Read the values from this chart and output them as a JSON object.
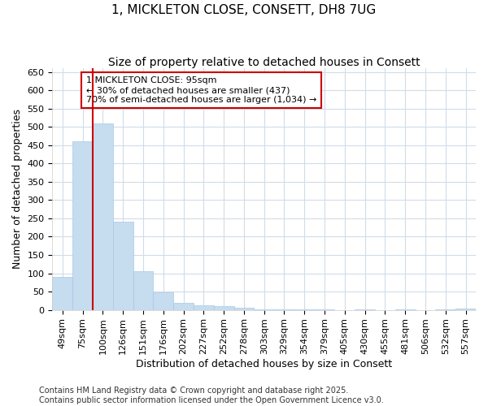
{
  "title_line1": "1, MICKLETON CLOSE, CONSETT, DH8 7UG",
  "title_line2": "Size of property relative to detached houses in Consett",
  "xlabel": "Distribution of detached houses by size in Consett",
  "ylabel": "Number of detached properties",
  "categories": [
    "49sqm",
    "75sqm",
    "100sqm",
    "126sqm",
    "151sqm",
    "176sqm",
    "202sqm",
    "227sqm",
    "252sqm",
    "278sqm",
    "303sqm",
    "329sqm",
    "354sqm",
    "379sqm",
    "405sqm",
    "430sqm",
    "455sqm",
    "481sqm",
    "506sqm",
    "532sqm",
    "557sqm"
  ],
  "values": [
    90,
    460,
    510,
    240,
    105,
    47,
    18,
    13,
    10,
    6,
    2,
    2,
    1,
    2,
    0,
    1,
    0,
    1,
    0,
    2,
    4
  ],
  "bar_color": "#c6dcef",
  "bar_edge_color": "#a8c8e8",
  "vline_x": 1.5,
  "vline_color": "#cc0000",
  "annotation_line1": "1 MICKLETON CLOSE: 95sqm",
  "annotation_line2": "← 30% of detached houses are smaller (437)",
  "annotation_line3": "70% of semi-detached houses are larger (1,034) →",
  "annotation_box_color": "#cc0000",
  "ylim": [
    0,
    660
  ],
  "yticks": [
    0,
    50,
    100,
    150,
    200,
    250,
    300,
    350,
    400,
    450,
    500,
    550,
    600,
    650
  ],
  "footnote": "Contains HM Land Registry data © Crown copyright and database right 2025.\nContains public sector information licensed under the Open Government Licence v3.0.",
  "background_color": "#ffffff",
  "grid_color": "#d0dce8",
  "title_fontsize": 11,
  "subtitle_fontsize": 10,
  "axis_label_fontsize": 9,
  "tick_fontsize": 8,
  "footnote_fontsize": 7
}
